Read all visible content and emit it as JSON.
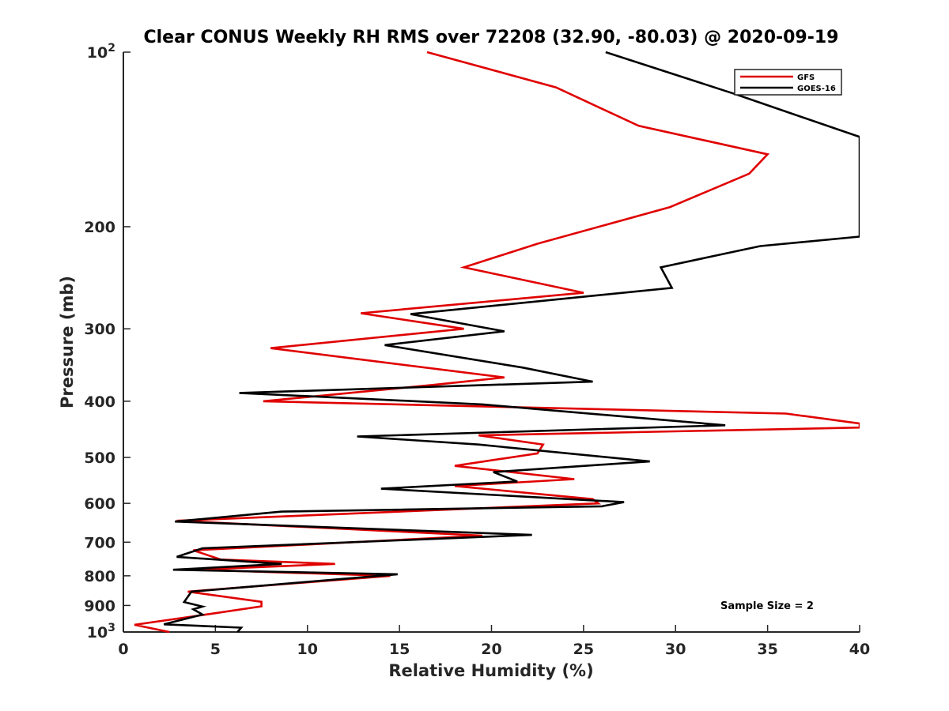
{
  "chart_data": {
    "type": "line",
    "title": "Clear CONUS Weekly RH RMS over 72208 (32.90, -80.03) @ 2020-09-19",
    "xlabel": "Relative Humidity (%)",
    "ylabel": "Pressure (mb)",
    "xlim": [
      0,
      40
    ],
    "ylim": [
      100,
      1000
    ],
    "y_scale": "log",
    "y_reversed": true,
    "x_ticks": [
      0,
      5,
      10,
      15,
      20,
      25,
      30,
      35,
      40
    ],
    "x_tick_labels": [
      "0",
      "5",
      "10",
      "15",
      "20",
      "25",
      "30",
      "35",
      "40"
    ],
    "y_ticks": [
      100,
      200,
      300,
      400,
      500,
      600,
      700,
      800,
      900,
      1000
    ],
    "y_tick_labels": [
      {
        "base": "10",
        "exp": "2"
      },
      {
        "base": "200"
      },
      {
        "base": "300"
      },
      {
        "base": "400"
      },
      {
        "base": "500"
      },
      {
        "base": "600"
      },
      {
        "base": "700"
      },
      {
        "base": "800"
      },
      {
        "base": "900"
      },
      {
        "base": "10",
        "exp": "3"
      }
    ],
    "grid": false,
    "legend_position": "top-right",
    "annotation": "Sample Size = 2",
    "series": [
      {
        "name": "GFS",
        "color": "#e00000",
        "points": [
          [
            16.5,
            100
          ],
          [
            23.5,
            115
          ],
          [
            28,
            134
          ],
          [
            35,
            150
          ],
          [
            34,
            162
          ],
          [
            29.7,
            185
          ],
          [
            22.5,
            214
          ],
          [
            18.5,
            235
          ],
          [
            25,
            260
          ],
          [
            12.9,
            282
          ],
          [
            18.5,
            300
          ],
          [
            8,
            324
          ],
          [
            20.7,
            364
          ],
          [
            16.8,
            375
          ],
          [
            7.6,
            400
          ],
          [
            36,
            420
          ],
          [
            40,
            437
          ],
          [
            40,
            444
          ],
          [
            19.3,
            458
          ],
          [
            22.8,
            475
          ],
          [
            22.5,
            492
          ],
          [
            18,
            517
          ],
          [
            24.5,
            545
          ],
          [
            18,
            560
          ],
          [
            25.5,
            590
          ],
          [
            25.8,
            600
          ],
          [
            2.9,
            643
          ],
          [
            19.5,
            682
          ],
          [
            3.8,
            723
          ],
          [
            5.3,
            750
          ],
          [
            11.5,
            763
          ],
          [
            4,
            781
          ],
          [
            14.5,
            800
          ],
          [
            3.5,
            852
          ],
          [
            7.5,
            887
          ],
          [
            7.5,
            903
          ],
          [
            4.7,
            931
          ],
          [
            0.6,
            972
          ],
          [
            2.5,
            1000
          ]
        ]
      },
      {
        "name": "GOES-16",
        "color": "#000000",
        "points": [
          [
            26.2,
            100
          ],
          [
            33.2,
            118
          ],
          [
            40,
            140
          ],
          [
            40,
            208
          ],
          [
            34.6,
            216
          ],
          [
            29.2,
            235
          ],
          [
            29.8,
            255
          ],
          [
            15.6,
            283
          ],
          [
            20.7,
            303
          ],
          [
            14.2,
            320
          ],
          [
            21.7,
            350
          ],
          [
            25.5,
            370
          ],
          [
            6.3,
            387
          ],
          [
            19.5,
            405
          ],
          [
            32.7,
            440
          ],
          [
            12.7,
            460
          ],
          [
            19.3,
            475
          ],
          [
            28.6,
            508
          ],
          [
            20.1,
            530
          ],
          [
            21.4,
            550
          ],
          [
            14,
            566
          ],
          [
            27.2,
            597
          ],
          [
            26,
            607
          ],
          [
            8.6,
            620
          ],
          [
            2.8,
            645
          ],
          [
            22.2,
            680
          ],
          [
            4.3,
            717
          ],
          [
            2.9,
            742
          ],
          [
            8.6,
            763
          ],
          [
            2.7,
            781
          ],
          [
            14.9,
            795
          ],
          [
            3.7,
            852
          ],
          [
            3.3,
            888
          ],
          [
            4.3,
            904
          ],
          [
            3.8,
            914
          ],
          [
            4.3,
            933
          ],
          [
            2.2,
            970
          ],
          [
            6.4,
            983
          ],
          [
            6.2,
            1000
          ]
        ]
      }
    ]
  }
}
